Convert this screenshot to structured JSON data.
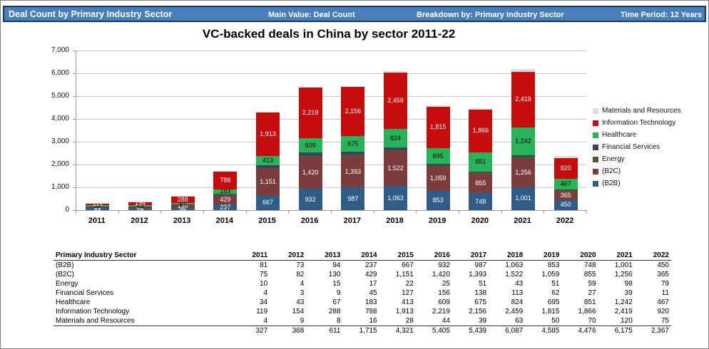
{
  "header": {
    "title": "Deal Count by Primary Industry Sector",
    "main_value": "Main Value: Deal Count",
    "breakdown": "Breakdown by: Primary Industry Sector",
    "time_period": "Time Period: 12 Years",
    "bar_color": "#4a7ebb",
    "border_color": "#17375e"
  },
  "chart_data": {
    "type": "bar",
    "stacked": true,
    "title": "VC-backed deals in China by sector 2011-22",
    "categories": [
      "2011",
      "2012",
      "2013",
      "2014",
      "2015",
      "2016",
      "2017",
      "2018",
      "2019",
      "2020",
      "2021",
      "2022"
    ],
    "series": [
      {
        "name": "(B2B)",
        "color": "#2f5d87",
        "label_color": "#ffffff",
        "show_labels": true,
        "values": [
          81,
          73,
          94,
          237,
          667,
          932,
          987,
          1063,
          853,
          748,
          1001,
          450
        ]
      },
      {
        "name": "(B2C)",
        "color": "#7b3c3c",
        "label_color": "#ffffff",
        "show_labels": true,
        "values": [
          75,
          82,
          130,
          429,
          1151,
          1420,
          1393,
          1522,
          1059,
          855,
          1256,
          365
        ]
      },
      {
        "name": "Energy",
        "color": "#50592c",
        "label_color": "#000000",
        "show_labels": false,
        "values": [
          10,
          4,
          15,
          17,
          22,
          25,
          51,
          43,
          51,
          59,
          98,
          79
        ]
      },
      {
        "name": "Financial Services",
        "color": "#3c4262",
        "label_color": "#ffffff",
        "show_labels": false,
        "values": [
          4,
          3,
          9,
          45,
          127,
          156,
          138,
          113,
          62,
          27,
          39,
          11
        ]
      },
      {
        "name": "Healthcare",
        "color": "#28b259",
        "label_color": "#000000",
        "show_labels": true,
        "values": [
          34,
          43,
          67,
          183,
          413,
          609,
          675,
          824,
          695,
          851,
          1242,
          467
        ]
      },
      {
        "name": "Information Technology",
        "color": "#c60c0c",
        "label_color": "#ffffff",
        "show_labels": true,
        "values": [
          119,
          154,
          288,
          788,
          1913,
          2219,
          2156,
          2459,
          1815,
          1866,
          2419,
          920
        ]
      },
      {
        "name": "Materials and Resources",
        "color": "#dcdcdc",
        "label_color": "#000000",
        "show_labels": false,
        "values": [
          4,
          9,
          8,
          16,
          28,
          44,
          39,
          63,
          50,
          70,
          120,
          75
        ]
      }
    ],
    "xlabel": "",
    "ylabel": "",
    "ylim": [
      0,
      7000
    ],
    "ytick_step": 1000,
    "yticks": [
      "0",
      "1,000",
      "2,000",
      "3,000",
      "4,000",
      "5,000",
      "6,000",
      "7,000"
    ],
    "grid": true,
    "legend_position": "right",
    "legend_order": "reversed"
  },
  "table": {
    "header_label": "Primary Industry Sector",
    "total_label": "",
    "totals": [
      327,
      368,
      611,
      1715,
      4321,
      5405,
      5439,
      6087,
      4585,
      4476,
      6175,
      2367
    ]
  }
}
